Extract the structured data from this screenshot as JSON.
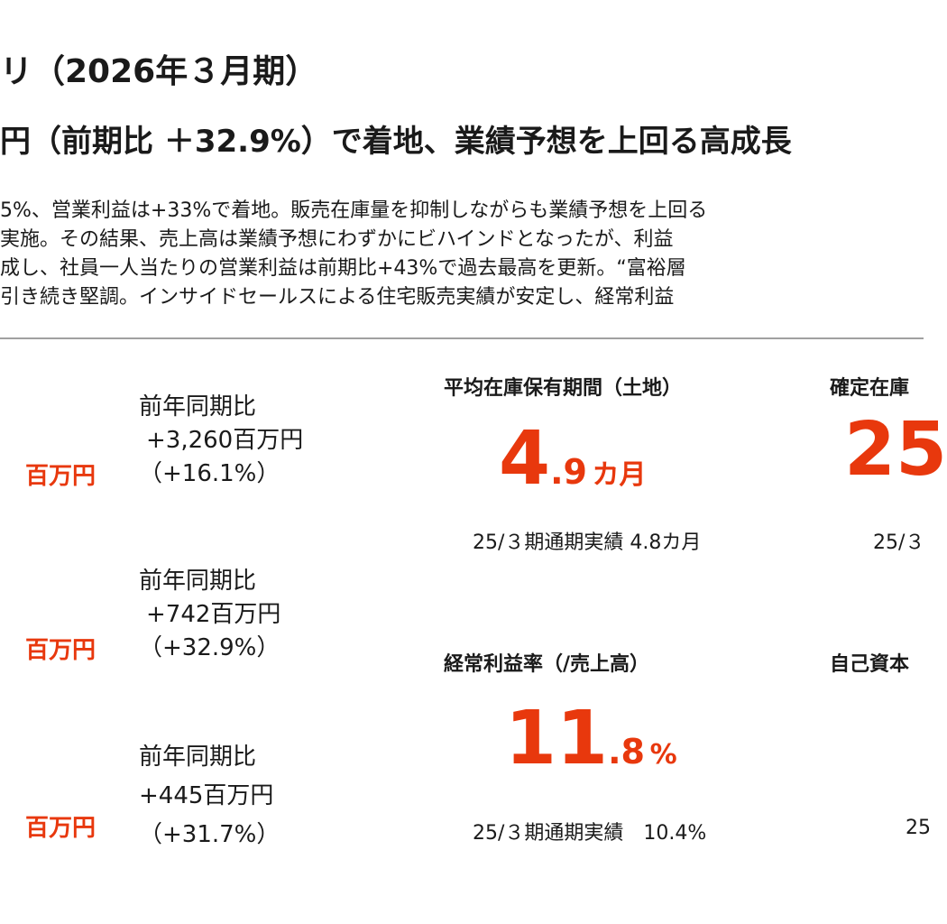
{
  "header": {
    "title": "リ（2026年３月期）",
    "subtitle": "円（前期比 ＋32.9%）で着地、業績予想を上回る高成長"
  },
  "body_lines": [
    "5%、営業利益は+33%で着地。販売在庫量を抑制しながらも業績予想を上回る",
    "実施。その結果、売上高は業績予想にわずかにビハインドとなったが、利益",
    "成し、社員一人当たりの営業利益は前期比+43%で過去最高を更新。“富裕層",
    "引き続き堅調。インサイドセールスによる住宅販売実績が安定し、経常利益"
  ],
  "metrics": [
    {
      "unit": "百万円",
      "yoy_label": "前年同期比",
      "yoy_amount": "+3,260百万円",
      "yoy_percent": "（+16.1%）"
    },
    {
      "unit": "百万円",
      "yoy_label": "前年同期比",
      "yoy_amount": "+742百万円",
      "yoy_percent": "（+32.9%）"
    },
    {
      "unit": "百万円",
      "yoy_label": "前年同期比",
      "yoy_amount": "+445百万円",
      "yoy_percent": "（+31.7%）"
    }
  ],
  "kpis": {
    "inventory_period": {
      "label": "平均在庫保有期間（土地）",
      "value_int": "4",
      "value_dec": ".9",
      "unit": "カ月",
      "note": "25/３期通期実績  4.8カ月"
    },
    "confirmed_inventory": {
      "label": "確定在庫",
      "value_int": "25",
      "note": "25/３"
    },
    "ordinary_margin": {
      "label": "経常利益率（/売上高）",
      "value_int": "11",
      "value_dec": ".8",
      "unit": "%",
      "note": "25/３期通期実績　10.4%"
    },
    "equity": {
      "label": "自己資本",
      "note": "25"
    }
  },
  "colors": {
    "accent": "#e8380d",
    "divider": "#a0a0a0",
    "text": "#1a1a1a"
  }
}
